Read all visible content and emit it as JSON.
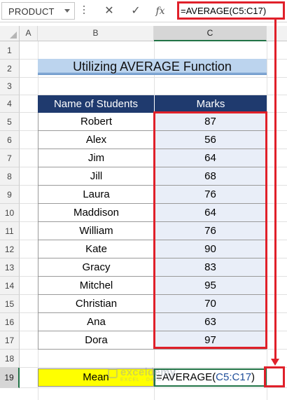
{
  "formula_bar": {
    "name_box": "PRODUCT",
    "cancel_icon": "✕",
    "enter_icon": "✓",
    "fx_label": "fx",
    "formula": "=AVERAGE(C5:C17)"
  },
  "columns": [
    "A",
    "B",
    "C"
  ],
  "selected_column": "C",
  "rows": [
    "1",
    "2",
    "3",
    "4",
    "5",
    "6",
    "7",
    "8",
    "9",
    "10",
    "11",
    "12",
    "13",
    "14",
    "15",
    "16",
    "17",
    "18",
    "19"
  ],
  "selected_row": "19",
  "title": "Utilizing AVERAGE Function",
  "table": {
    "headers": [
      "Name of Students",
      "Marks"
    ],
    "rows": [
      {
        "name": "Robert",
        "marks": "87"
      },
      {
        "name": "Alex",
        "marks": "56"
      },
      {
        "name": "Jim",
        "marks": "64"
      },
      {
        "name": "Jill",
        "marks": "68"
      },
      {
        "name": "Laura",
        "marks": "76"
      },
      {
        "name": "Maddison",
        "marks": "64"
      },
      {
        "name": "William",
        "marks": "76"
      },
      {
        "name": "Kate",
        "marks": "90"
      },
      {
        "name": "Gracy",
        "marks": "83"
      },
      {
        "name": "Mitchel",
        "marks": "95"
      },
      {
        "name": "Christian",
        "marks": "70"
      },
      {
        "name": "Ana",
        "marks": "63"
      },
      {
        "name": "Dora",
        "marks": "97"
      }
    ]
  },
  "mean": {
    "label": "Mean",
    "formula_prefix": "=AVERAGE(",
    "formula_ref": "C5:C17",
    "formula_suffix": ")"
  },
  "watermark": {
    "text": "exceldemy",
    "sub": "EXCEL · DATA · BI"
  },
  "colors": {
    "header_bg": "#1f3a6e",
    "title_bg": "#bcd4ee",
    "marks_bg": "#e9eef8",
    "mean_label_bg": "#ffff00",
    "highlight_red": "#e0202a",
    "selection_green": "#217346"
  }
}
